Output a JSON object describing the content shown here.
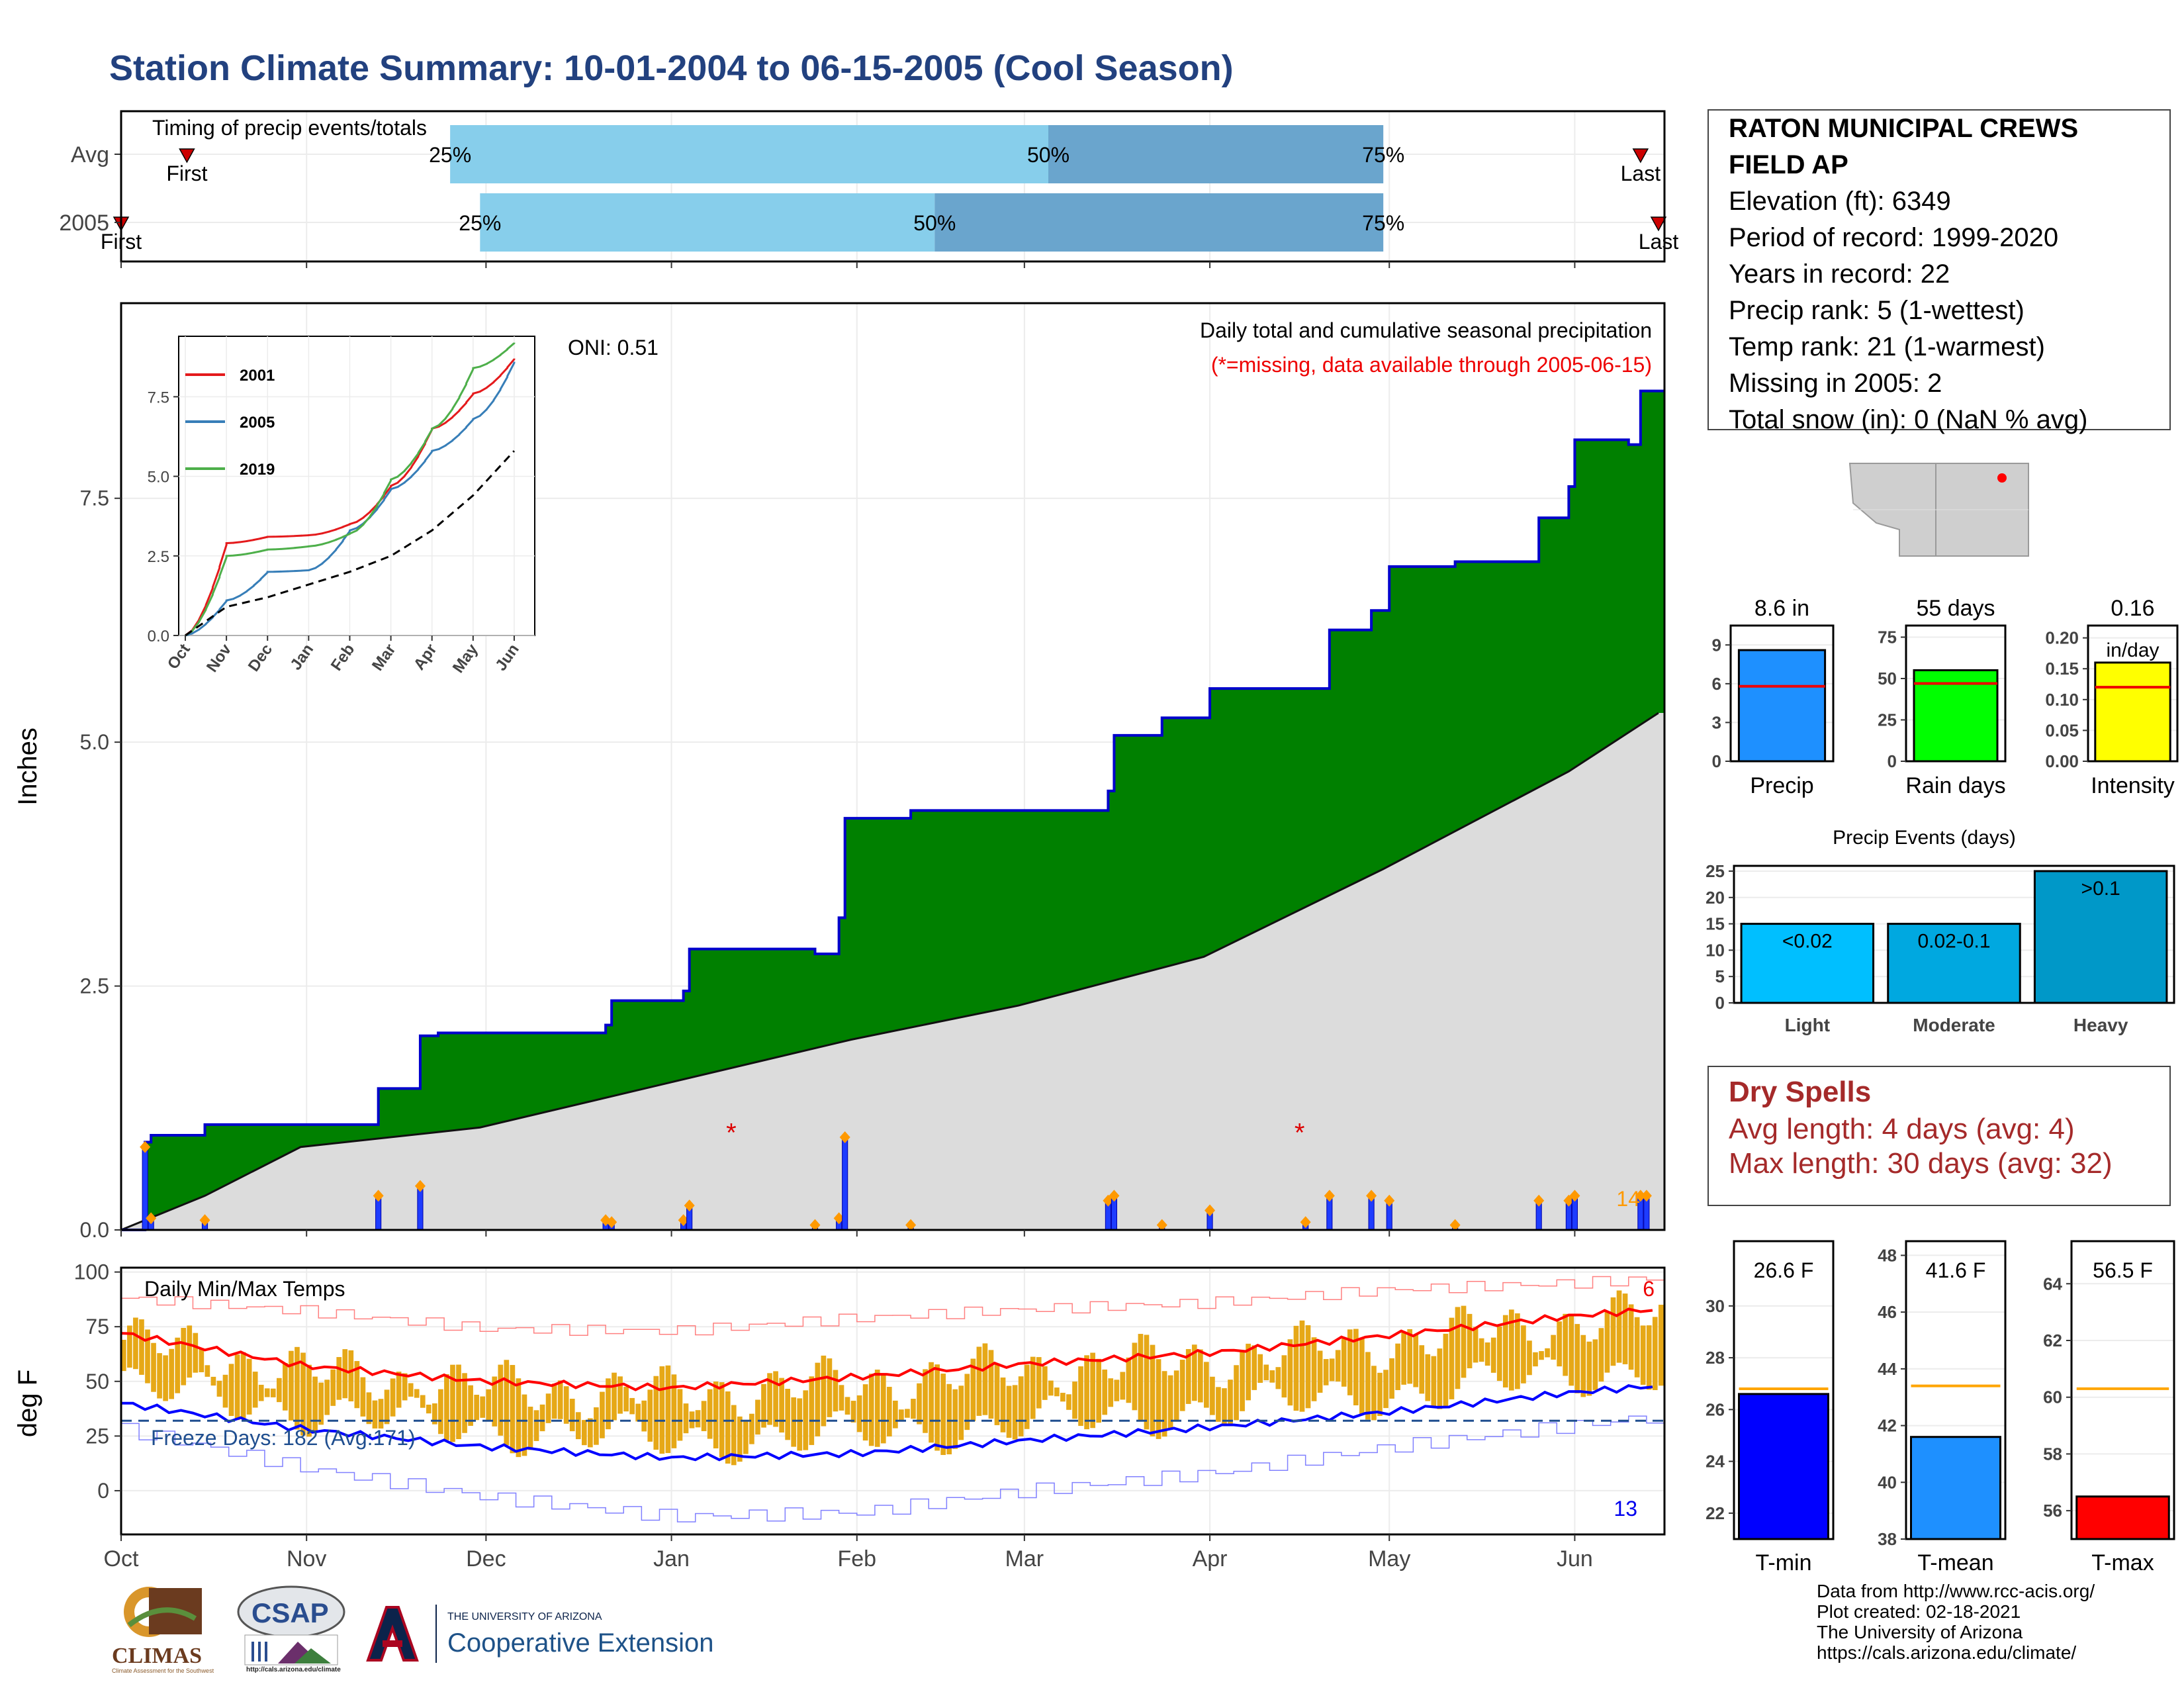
{
  "page_title": "Station Climate Summary: 10-01-2004 to 06-15-2005 (Cool Season)",
  "station": {
    "name_line1": "RATON MUNICIPAL CREWS",
    "name_line2": "FIELD AP",
    "elevation": "Elevation (ft): 6349",
    "period": "Period of record: 1999-2020",
    "years": "Years in record: 22",
    "precip_rank": "Precip rank: 5 (1-wettest)",
    "temp_rank": "Temp rank: 21 (1-warmest)",
    "missing": "Missing in 2005: 2",
    "snow": "Total snow (in): 0 (NaN % avg)"
  },
  "dry_spells": {
    "title": "Dry Spells",
    "avg": "Avg length: 4 days (avg: 4)",
    "max": "Max length: 30 days (avg: 32)"
  },
  "credits": {
    "line1": "Data from http://www.rcc-acis.org/",
    "line2": "Plot created: 02-18-2021",
    "line3": "The University of Arizona",
    "line4": "https://cals.arizona.edu/climate/"
  },
  "logos": {
    "climas": "CLIMAS",
    "climas_sub": "Climate Assessment for the Southwest",
    "csap": "CSAP",
    "csap_url": "http://cals.arizona.edu/climate",
    "ua_line1": "THE UNIVERSITY OF ARIZONA",
    "ua_line2": "Cooperative Extension"
  },
  "colors": {
    "title": "#22417f",
    "cum_area": "#008000",
    "cum_line": "#0000cc",
    "avg_area": "#dcdcdc",
    "bars": "#1e3cff",
    "temp_bar": "#e6a817",
    "tmax": "#ff0000",
    "tmin": "#0000ff",
    "pct_light": "#87ceeb",
    "pct_dark": "#6aa5cd"
  },
  "chart_data": [
    {
      "type": "bar",
      "title": "Timing of precip events/totals",
      "rows": [
        {
          "label": "Avg",
          "first_label": "First",
          "last_label": "Last",
          "first": "2004-10-12",
          "p25": "2004-11-25",
          "p50": "2005-03-05",
          "p75": "2005-04-30",
          "last": "2005-06-12"
        },
        {
          "label": "2005",
          "first_label": "First",
          "last_label": "Last",
          "first": "2004-10-01",
          "p25": "2004-11-30",
          "p50": "2005-02-14",
          "p75": "2005-04-30",
          "last": "2005-06-15"
        }
      ],
      "percent_labels": [
        "25%",
        "50%",
        "75%"
      ]
    },
    {
      "type": "area",
      "title": "Daily total and cumulative seasonal precipitation",
      "subtitle": "(*=missing, data available through 2005-06-15)",
      "annotation": "ONI: 0.51",
      "ylabel": "Inches",
      "ylim": [
        0,
        9.5
      ],
      "yticks": [
        0.0,
        2.5,
        5.0,
        7.5
      ],
      "ytick_labels": [
        "0.0",
        "2.5",
        "5.0",
        "7.5"
      ],
      "xticks": [
        "Oct",
        "Nov",
        "Dec",
        "Jan",
        "Feb",
        "Mar",
        "Apr",
        "May",
        "Jun"
      ],
      "cumulative_2005": [
        [
          "2004-10-01",
          0.0
        ],
        [
          "2004-10-05",
          0.9
        ],
        [
          "2004-10-06",
          0.97
        ],
        [
          "2004-10-15",
          1.08
        ],
        [
          "2004-11-13",
          1.45
        ],
        [
          "2004-11-20",
          1.99
        ],
        [
          "2004-11-23",
          2.02
        ],
        [
          "2004-12-21",
          2.1
        ],
        [
          "2004-12-22",
          2.35
        ],
        [
          "2005-01-03",
          2.45
        ],
        [
          "2005-01-04",
          2.88
        ],
        [
          "2005-01-25",
          2.83
        ],
        [
          "2005-01-29",
          3.2
        ],
        [
          "2005-01-30",
          4.22
        ],
        [
          "2005-02-10",
          4.3
        ],
        [
          "2005-03-15",
          4.5
        ],
        [
          "2005-03-16",
          5.07
        ],
        [
          "2005-03-24",
          5.25
        ],
        [
          "2005-04-01",
          5.55
        ],
        [
          "2005-04-21",
          6.15
        ],
        [
          "2005-04-28",
          6.35
        ],
        [
          "2005-05-01",
          6.8
        ],
        [
          "2005-05-12",
          6.85
        ],
        [
          "2005-05-26",
          7.3
        ],
        [
          "2005-05-31",
          7.62
        ],
        [
          "2005-06-01",
          8.1
        ],
        [
          "2005-06-10",
          8.05
        ],
        [
          "2005-06-12",
          8.6
        ],
        [
          "2005-06-15",
          8.6
        ]
      ],
      "average_cumulative": [
        [
          "2004-10-01",
          0.0
        ],
        [
          "2004-10-15",
          0.35
        ],
        [
          "2004-10-31",
          0.85
        ],
        [
          "2004-11-30",
          1.05
        ],
        [
          "2004-12-31",
          1.5
        ],
        [
          "2005-01-31",
          1.95
        ],
        [
          "2005-02-28",
          2.3
        ],
        [
          "2005-03-31",
          2.8
        ],
        [
          "2005-04-30",
          3.7
        ],
        [
          "2005-05-31",
          4.7
        ],
        [
          "2005-06-15",
          5.3
        ]
      ],
      "daily_precip": [
        [
          "2004-10-05",
          0.85
        ],
        [
          "2004-10-06",
          0.12
        ],
        [
          "2004-10-15",
          0.1
        ],
        [
          "2004-11-13",
          0.35
        ],
        [
          "2004-11-20",
          0.45
        ],
        [
          "2004-12-21",
          0.1
        ],
        [
          "2004-12-22",
          0.08
        ],
        [
          "2005-01-03",
          0.1
        ],
        [
          "2005-01-04",
          0.25
        ],
        [
          "2005-01-25",
          0.05
        ],
        [
          "2005-01-29",
          0.12
        ],
        [
          "2005-01-30",
          0.95
        ],
        [
          "2005-02-10",
          0.05
        ],
        [
          "2005-03-15",
          0.3
        ],
        [
          "2005-03-16",
          0.35
        ],
        [
          "2005-03-24",
          0.05
        ],
        [
          "2005-04-01",
          0.2
        ],
        [
          "2005-04-17",
          0.08
        ],
        [
          "2005-04-21",
          0.35
        ],
        [
          "2005-04-28",
          0.35
        ],
        [
          "2005-05-01",
          0.3
        ],
        [
          "2005-05-12",
          0.05
        ],
        [
          "2005-05-26",
          0.3
        ],
        [
          "2005-05-31",
          0.3
        ],
        [
          "2005-06-01",
          0.35
        ],
        [
          "2005-06-12",
          0.35
        ],
        [
          "2005-06-13",
          0.35
        ]
      ],
      "missing_days": [
        "2005-01-11",
        "2005-04-16"
      ],
      "right_annotation": "14"
    },
    {
      "type": "line",
      "title": "",
      "xticks": [
        "Oct",
        "Nov",
        "Dec",
        "Jan",
        "Feb",
        "Mar",
        "Apr",
        "May",
        "Jun"
      ],
      "yticks": [
        0.0,
        2.5,
        5.0,
        7.5
      ],
      "ytick_labels": [
        "0.0",
        "2.5",
        "5.0",
        "7.5"
      ],
      "series": [
        {
          "name": "2001",
          "color": "#e41a1c",
          "values": [
            0.0,
            2.9,
            3.1,
            3.15,
            3.5,
            4.7,
            6.5,
            7.6,
            8.7
          ]
        },
        {
          "name": "2005",
          "color": "#377eb8",
          "values": [
            0.0,
            1.1,
            2.0,
            2.05,
            3.3,
            4.6,
            5.8,
            6.8,
            8.6
          ]
        },
        {
          "name": "2019",
          "color": "#4daf4a",
          "values": [
            0.0,
            2.5,
            2.7,
            2.8,
            3.2,
            4.9,
            6.5,
            8.4,
            9.2
          ]
        },
        {
          "name": "",
          "color": "#000000",
          "dashed": true,
          "values": [
            0.0,
            0.9,
            1.2,
            1.6,
            2.0,
            2.5,
            3.3,
            4.4,
            5.8
          ]
        }
      ]
    },
    {
      "type": "bar",
      "title": "Daily Min/Max Temps",
      "ylabel": "deg F",
      "ylim": [
        -20,
        102
      ],
      "yticks": [
        0,
        25,
        50,
        75,
        100
      ],
      "xticks": [
        "Oct",
        "Nov",
        "Dec",
        "Jan",
        "Feb",
        "Mar",
        "Apr",
        "May",
        "Jun"
      ],
      "freeze_label": "Freeze Days: 182 (Avg:171)",
      "record_high_count": "6",
      "record_low_count": "13",
      "avg_tmax": [
        [
          "2004-10-01",
          72
        ],
        [
          "2004-11-01",
          57
        ],
        [
          "2004-12-01",
          50
        ],
        [
          "2005-01-01",
          47
        ],
        [
          "2005-02-01",
          52
        ],
        [
          "2005-03-01",
          58
        ],
        [
          "2005-04-01",
          63
        ],
        [
          "2005-05-01",
          71
        ],
        [
          "2005-06-01",
          80
        ],
        [
          "2005-06-15",
          83
        ]
      ],
      "avg_tmin": [
        [
          "2004-10-01",
          40
        ],
        [
          "2004-11-01",
          28
        ],
        [
          "2004-12-01",
          20
        ],
        [
          "2005-01-01",
          15
        ],
        [
          "2005-02-01",
          17
        ],
        [
          "2005-03-01",
          23
        ],
        [
          "2005-04-01",
          29
        ],
        [
          "2005-05-01",
          36
        ],
        [
          "2005-06-01",
          45
        ],
        [
          "2005-06-15",
          48
        ]
      ],
      "record_tmax": [
        [
          "2004-10-01",
          88
        ],
        [
          "2004-11-01",
          82
        ],
        [
          "2004-12-01",
          74
        ],
        [
          "2005-01-01",
          73
        ],
        [
          "2005-02-01",
          79
        ],
        [
          "2005-03-01",
          83
        ],
        [
          "2005-04-01",
          86
        ],
        [
          "2005-05-01",
          92
        ],
        [
          "2005-06-01",
          95
        ],
        [
          "2005-06-15",
          97
        ]
      ],
      "record_tmin": [
        [
          "2004-10-01",
          28
        ],
        [
          "2004-11-01",
          10
        ],
        [
          "2004-12-01",
          -3
        ],
        [
          "2005-01-01",
          -12
        ],
        [
          "2005-02-01",
          -10
        ],
        [
          "2005-03-01",
          0
        ],
        [
          "2005-04-01",
          8
        ],
        [
          "2005-05-01",
          20
        ],
        [
          "2005-06-01",
          30
        ],
        [
          "2005-06-15",
          34
        ]
      ],
      "freeze_line": 32
    },
    {
      "type": "bar",
      "title": "",
      "categories": [
        "Precip",
        "Rain days",
        "Intensity"
      ],
      "panels": [
        {
          "category": "Precip",
          "value": 8.6,
          "label": "8.6 in",
          "avg": 5.8,
          "ylim": [
            0,
            10.5
          ],
          "yticks": [
            "0",
            "3",
            "6",
            "9"
          ],
          "ytick_values": [
            0,
            3,
            6,
            9
          ],
          "color": "#1e90ff"
        },
        {
          "category": "Rain days",
          "value": 55,
          "label": "55 days",
          "avg": 47,
          "ylim": [
            0,
            82
          ],
          "yticks": [
            "0",
            "25",
            "50",
            "75"
          ],
          "ytick_values": [
            0,
            25,
            50,
            75
          ],
          "color": "#00ff00"
        },
        {
          "category": "Intensity",
          "value": 0.16,
          "label": "0.16",
          "label2": "in/day",
          "avg": 0.12,
          "ylim": [
            0,
            0.22
          ],
          "yticks": [
            "0.00",
            "0.05",
            "0.10",
            "0.15",
            "0.20"
          ],
          "ytick_values": [
            0,
            0.05,
            0.1,
            0.15,
            0.2
          ],
          "color": "#ffff00"
        }
      ]
    },
    {
      "type": "bar",
      "title": "Precip Events (days)",
      "categories": [
        "Light",
        "Moderate",
        "Heavy"
      ],
      "values": [
        15,
        15,
        25
      ],
      "bar_labels": [
        "<0.02",
        "0.02-0.1",
        ">0.1"
      ],
      "colors": [
        "#00bfff",
        "#00a8e0",
        "#0098c8"
      ],
      "ylim": [
        0,
        26
      ],
      "yticks": [
        0,
        5,
        10,
        15,
        20,
        25
      ]
    },
    {
      "type": "bar",
      "title": "",
      "categories": [
        "T-min",
        "T-mean",
        "T-max"
      ],
      "panels": [
        {
          "category": "T-min",
          "value": 26.6,
          "label": "26.6 F",
          "avg": 26.8,
          "ylim": [
            21,
            32.5
          ],
          "ytick_values": [
            22,
            24,
            26,
            28,
            30
          ],
          "yticks": [
            "22",
            "24",
            "26",
            "28",
            "30"
          ],
          "color": "#0000ff"
        },
        {
          "category": "T-mean",
          "value": 41.6,
          "label": "41.6 F",
          "avg": 43.4,
          "ylim": [
            38,
            48.5
          ],
          "ytick_values": [
            38,
            40,
            42,
            44,
            46,
            48
          ],
          "yticks": [
            "38",
            "40",
            "42",
            "44",
            "46",
            "48"
          ],
          "color": "#1e90ff"
        },
        {
          "category": "T-max",
          "value": 56.5,
          "label": "56.5 F",
          "avg": 60.3,
          "ylim": [
            55,
            65.5
          ],
          "ytick_values": [
            56,
            58,
            60,
            62,
            64
          ],
          "yticks": [
            "56",
            "58",
            "60",
            "62",
            "64"
          ],
          "color": "#ff0000"
        }
      ]
    }
  ]
}
